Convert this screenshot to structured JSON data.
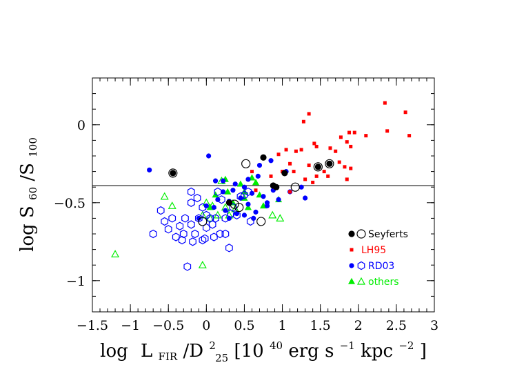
{
  "chart_data": {
    "type": "scatter",
    "xlim": [
      -1.5,
      3.0
    ],
    "ylim": [
      -1.2,
      0.3
    ],
    "x_ticks": [
      -1.5,
      -1,
      -0.5,
      0,
      0.5,
      1,
      1.5,
      2,
      2.5,
      3
    ],
    "x_tick_labels": [
      "−1.5",
      "−1",
      "−0.5",
      "0",
      "0.5",
      "1",
      "1.5",
      "2",
      "2.5",
      "3"
    ],
    "y_ticks": [
      -1,
      -0.5,
      0
    ],
    "y_tick_labels": [
      "−1",
      "−0.5",
      "0"
    ],
    "xlabel": {
      "log": "log",
      "L": "L",
      "fir": "FIR",
      "slash": "/D",
      "sup": "2",
      "sub": "25",
      "unit_open": " [10",
      "unit_exp": "40",
      "unit_mid": " erg s",
      "unit_exp2": "−1",
      "unit_mid2": " kpc",
      "unit_exp3": "−2",
      "unit_close": "]"
    },
    "ylabel": {
      "log": "log S",
      "sub1": "60",
      "slash": "/S",
      "sub2": "100"
    },
    "reference_line_y": -0.39,
    "grid": false,
    "legend_position": "bottom-right",
    "series": [
      {
        "name": "Seyferts",
        "color": "#000000",
        "marker": "circle",
        "filled": [
          [
            0.75,
            -0.21
          ],
          [
            1.03,
            -0.31
          ],
          [
            0.88,
            -0.39
          ],
          [
            0.92,
            -0.4
          ],
          [
            0.3,
            -0.5
          ],
          [
            -0.44,
            -0.31
          ],
          [
            1.62,
            -0.25
          ],
          [
            1.47,
            -0.27
          ]
        ],
        "open": [
          [
            -0.44,
            -0.31
          ],
          [
            0.52,
            -0.25
          ],
          [
            1.47,
            -0.27
          ],
          [
            1.62,
            -0.25
          ],
          [
            1.17,
            -0.4
          ],
          [
            0.37,
            -0.51
          ],
          [
            0.43,
            -0.53
          ],
          [
            0.72,
            -0.62
          ],
          [
            -0.05,
            -0.62
          ]
        ]
      },
      {
        "name": "LH95",
        "color": "#ff0000",
        "marker": "square",
        "filled": [
          [
            2.35,
            0.14
          ],
          [
            2.62,
            0.08
          ],
          [
            1.35,
            0.07
          ],
          [
            1.28,
            0.02
          ],
          [
            2.38,
            -0.04
          ],
          [
            2.67,
            -0.07
          ],
          [
            1.95,
            -0.05
          ],
          [
            1.88,
            -0.05
          ],
          [
            1.77,
            -0.08
          ],
          [
            1.85,
            -0.11
          ],
          [
            2.1,
            -0.07
          ],
          [
            1.9,
            -0.14
          ],
          [
            1.7,
            -0.17
          ],
          [
            1.63,
            -0.15
          ],
          [
            1.42,
            -0.12
          ],
          [
            1.45,
            -0.14
          ],
          [
            1.25,
            -0.16
          ],
          [
            1.18,
            -0.17
          ],
          [
            1.05,
            -0.16
          ],
          [
            0.95,
            -0.19
          ],
          [
            1.1,
            -0.25
          ],
          [
            1.0,
            -0.3
          ],
          [
            1.15,
            -0.3
          ],
          [
            1.35,
            -0.26
          ],
          [
            1.55,
            -0.3
          ],
          [
            1.75,
            -0.24
          ],
          [
            1.82,
            -0.27
          ],
          [
            1.9,
            -0.28
          ],
          [
            1.45,
            -0.33
          ],
          [
            1.6,
            -0.33
          ],
          [
            1.85,
            -0.35
          ],
          [
            1.3,
            -0.35
          ],
          [
            0.85,
            -0.33
          ],
          [
            0.6,
            -0.3
          ],
          [
            0.65,
            -0.42
          ],
          [
            0.9,
            -0.4
          ],
          [
            1.1,
            -0.43
          ],
          [
            1.4,
            -0.37
          ]
        ]
      },
      {
        "name": "RD03",
        "color": "#0000ff",
        "marker": "circle",
        "filled": [
          [
            -0.75,
            -0.29
          ],
          [
            0.03,
            -0.2
          ],
          [
            0.12,
            -0.36
          ],
          [
            0.22,
            -0.36
          ],
          [
            0.38,
            -0.38
          ],
          [
            0.55,
            -0.35
          ],
          [
            0.68,
            -0.33
          ],
          [
            0.5,
            -0.4
          ],
          [
            0.35,
            -0.42
          ],
          [
            0.22,
            -0.43
          ],
          [
            0.15,
            -0.48
          ],
          [
            0.3,
            -0.49
          ],
          [
            0.6,
            -0.44
          ],
          [
            0.75,
            -0.46
          ],
          [
            0.55,
            -0.51
          ],
          [
            0.65,
            -0.56
          ],
          [
            0.8,
            -0.5
          ],
          [
            0.88,
            -0.42
          ],
          [
            1.1,
            -0.43
          ],
          [
            1.25,
            -0.4
          ],
          [
            0.7,
            -0.26
          ],
          [
            0.85,
            -0.23
          ],
          [
            1.05,
            -0.3
          ],
          [
            1.3,
            -0.47
          ],
          [
            0.4,
            -0.57
          ],
          [
            0.5,
            -0.58
          ],
          [
            0.25,
            -0.55
          ],
          [
            0.1,
            -0.53
          ],
          [
            0.0,
            -0.52
          ],
          [
            -0.1,
            -0.6
          ],
          [
            0.62,
            -0.6
          ],
          [
            0.8,
            -0.52
          ],
          [
            0.95,
            -0.48
          ],
          [
            0.45,
            -0.47
          ],
          [
            0.3,
            -0.6
          ]
        ],
        "open": [
          [
            -0.7,
            -0.7
          ],
          [
            -0.55,
            -0.62
          ],
          [
            -0.6,
            -0.55
          ],
          [
            -0.45,
            -0.6
          ],
          [
            -0.35,
            -0.65
          ],
          [
            -0.2,
            -0.64
          ],
          [
            -0.28,
            -0.6
          ],
          [
            -0.1,
            -0.6
          ],
          [
            -0.2,
            -0.5
          ],
          [
            -0.12,
            -0.47
          ],
          [
            -0.05,
            -0.53
          ],
          [
            0.0,
            -0.58
          ],
          [
            0.05,
            -0.6
          ],
          [
            -0.2,
            -0.43
          ],
          [
            0.15,
            -0.43
          ],
          [
            0.2,
            -0.48
          ],
          [
            0.08,
            -0.64
          ],
          [
            0.0,
            -0.66
          ],
          [
            -0.15,
            -0.7
          ],
          [
            -0.3,
            -0.7
          ],
          [
            -0.4,
            -0.72
          ],
          [
            -0.32,
            -0.74
          ],
          [
            -0.18,
            -0.75
          ],
          [
            -0.05,
            -0.74
          ],
          [
            0.25,
            -0.7
          ],
          [
            0.3,
            -0.79
          ],
          [
            0.18,
            -0.7
          ],
          [
            0.12,
            -0.6
          ],
          [
            0.25,
            -0.6
          ],
          [
            0.32,
            -0.57
          ],
          [
            0.4,
            -0.58
          ],
          [
            0.45,
            -0.46
          ],
          [
            0.5,
            -0.45
          ],
          [
            0.55,
            -0.43
          ],
          [
            0.58,
            -0.62
          ],
          [
            0.1,
            -0.72
          ],
          [
            -0.25,
            -0.91
          ],
          [
            -0.02,
            -0.73
          ],
          [
            0.35,
            -0.53
          ],
          [
            -0.5,
            -0.67
          ]
        ]
      },
      {
        "name": "others",
        "color": "#00ee00",
        "marker": "triangle",
        "filled": [
          [
            0.25,
            -0.35
          ],
          [
            0.45,
            -0.38
          ],
          [
            0.65,
            -0.37
          ],
          [
            0.6,
            -0.34
          ],
          [
            0.35,
            -0.5
          ],
          [
            0.5,
            -0.47
          ],
          [
            0.7,
            -0.45
          ],
          [
            0.5,
            -0.43
          ],
          [
            0.95,
            -0.48
          ],
          [
            0.28,
            -0.43
          ],
          [
            0.12,
            -0.45
          ],
          [
            0.05,
            -0.53
          ],
          [
            0.75,
            -0.52
          ],
          [
            0.55,
            -0.53
          ]
        ],
        "open": [
          [
            -1.2,
            -0.83
          ],
          [
            -0.55,
            -0.46
          ],
          [
            -0.45,
            -0.52
          ],
          [
            -0.05,
            -0.58
          ],
          [
            0.0,
            -0.5
          ],
          [
            0.05,
            -0.6
          ],
          [
            0.15,
            -0.58
          ],
          [
            0.2,
            -0.36
          ],
          [
            0.3,
            -0.58
          ],
          [
            0.38,
            -0.54
          ],
          [
            0.87,
            -0.58
          ],
          [
            0.97,
            -0.6
          ],
          [
            -0.05,
            -0.9
          ],
          [
            0.08,
            -0.52
          ],
          [
            0.25,
            -0.53
          ]
        ]
      }
    ]
  }
}
